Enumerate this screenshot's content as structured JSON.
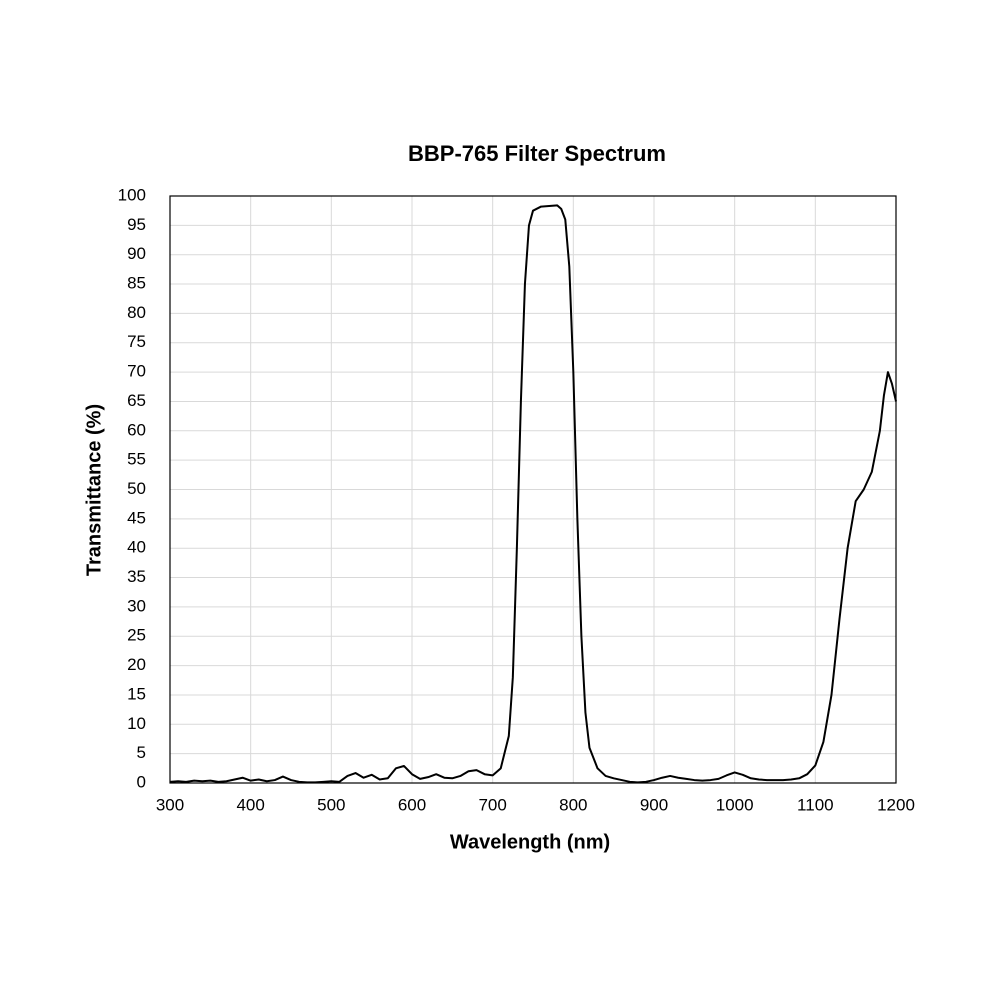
{
  "chart_data": {
    "type": "line",
    "title": "BBP-765 Filter Spectrum",
    "x_label": "Wavelength (nm)",
    "y_label": "Transmittance (%)",
    "x": [
      300,
      310,
      320,
      330,
      340,
      350,
      360,
      370,
      380,
      390,
      400,
      410,
      420,
      430,
      440,
      450,
      460,
      470,
      480,
      490,
      500,
      510,
      520,
      530,
      540,
      550,
      560,
      570,
      580,
      590,
      600,
      610,
      620,
      630,
      640,
      650,
      660,
      670,
      680,
      690,
      700,
      710,
      720,
      725,
      730,
      735,
      740,
      745,
      750,
      760,
      770,
      780,
      785,
      790,
      795,
      800,
      805,
      810,
      815,
      820,
      830,
      840,
      850,
      860,
      870,
      880,
      890,
      900,
      910,
      920,
      930,
      940,
      950,
      960,
      970,
      980,
      990,
      1000,
      1010,
      1020,
      1030,
      1040,
      1050,
      1060,
      1070,
      1080,
      1090,
      1100,
      1110,
      1120,
      1130,
      1140,
      1150,
      1160,
      1170,
      1180,
      1185,
      1190,
      1195,
      1200
    ],
    "series": [
      {
        "name": "BBP-765",
        "color": "#000000",
        "values": [
          0.2,
          0.3,
          0.2,
          0.4,
          0.3,
          0.4,
          0.2,
          0.3,
          0.6,
          0.9,
          0.4,
          0.6,
          0.3,
          0.5,
          1.1,
          0.5,
          0.2,
          0.1,
          0.1,
          0.2,
          0.3,
          0.2,
          1.2,
          1.7,
          0.9,
          1.4,
          0.6,
          0.8,
          2.5,
          2.9,
          1.5,
          0.7,
          1.0,
          1.5,
          0.9,
          0.8,
          1.2,
          2.0,
          2.2,
          1.5,
          1.3,
          2.5,
          8,
          18,
          40,
          65,
          85,
          95,
          97.5,
          98.2,
          98.3,
          98.4,
          97.8,
          96,
          88,
          70,
          45,
          25,
          12,
          6,
          2.5,
          1.2,
          0.8,
          0.5,
          0.2,
          0.1,
          0.2,
          0.5,
          0.9,
          1.2,
          0.9,
          0.7,
          0.5,
          0.4,
          0.5,
          0.7,
          1.3,
          1.8,
          1.4,
          0.8,
          0.6,
          0.5,
          0.5,
          0.5,
          0.6,
          0.8,
          1.5,
          3,
          7,
          15,
          28,
          40,
          48,
          50,
          53,
          60,
          66,
          70,
          68,
          65
        ]
      }
    ],
    "xlim": [
      300,
      1200
    ],
    "xticks": [
      300,
      400,
      500,
      600,
      700,
      800,
      900,
      1000,
      1100,
      1200
    ],
    "ylim": [
      0,
      100
    ],
    "yticks": [
      0,
      5,
      10,
      15,
      20,
      25,
      30,
      35,
      40,
      45,
      50,
      55,
      60,
      65,
      70,
      75,
      80,
      85,
      90,
      95,
      100
    ],
    "grid": true
  }
}
